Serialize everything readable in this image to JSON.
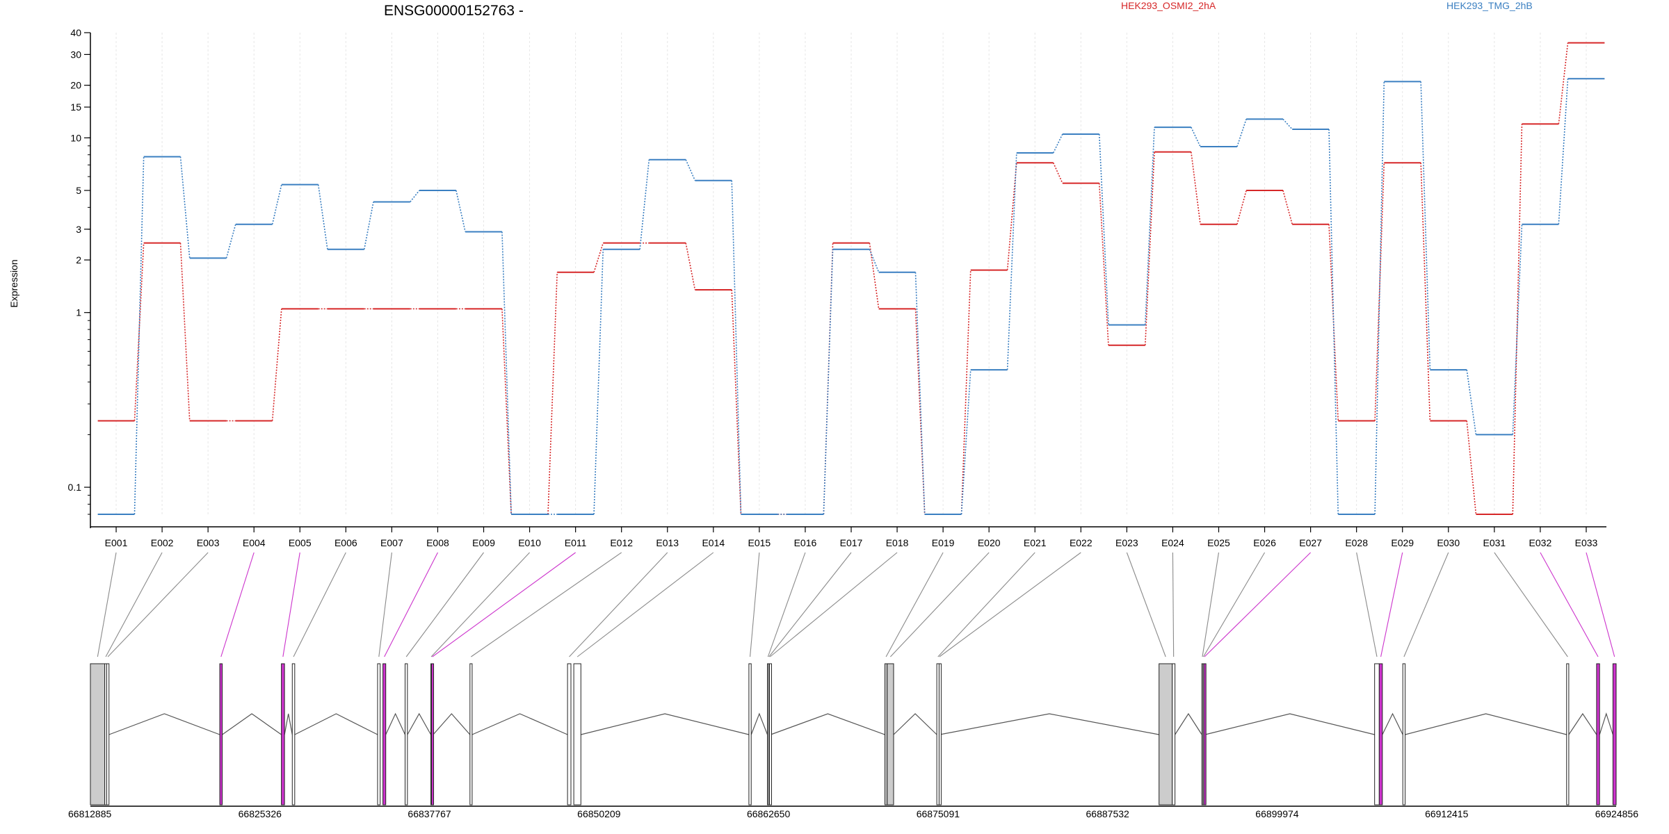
{
  "chart_data": {
    "type": "line",
    "title": "ENSG00000152763 -",
    "ylabel": "Expression",
    "y_scale": "log",
    "ylim": [
      0.07,
      40
    ],
    "y_ticks": [
      0.1,
      1,
      2,
      3,
      5,
      10,
      15,
      20,
      30,
      40
    ],
    "grid": "vertical dotted at exon centers",
    "legend_placement": "top, right half",
    "categories": [
      "E001",
      "E002",
      "E003",
      "E004",
      "E005",
      "E006",
      "E007",
      "E008",
      "E009",
      "E010",
      "E011",
      "E012",
      "E013",
      "E014",
      "E015",
      "E016",
      "E017",
      "E018",
      "E019",
      "E020",
      "E021",
      "E022",
      "E023",
      "E024",
      "E025",
      "E026",
      "E027",
      "E028",
      "E029",
      "E030",
      "E031",
      "E032",
      "E033"
    ],
    "series": [
      {
        "name": "HEK293_OSMI2_2hA",
        "color": "#d62728",
        "values": [
          0.24,
          2.5,
          0.24,
          0.24,
          1.05,
          1.05,
          1.05,
          1.05,
          1.05,
          0.07,
          1.7,
          2.5,
          2.5,
          1.35,
          0.07,
          0.07,
          2.5,
          1.05,
          0.07,
          1.75,
          7.2,
          5.5,
          0.65,
          8.3,
          3.2,
          5.0,
          3.2,
          0.24,
          7.2,
          0.24,
          0.07,
          12.0,
          35.0
        ]
      },
      {
        "name": "HEK293_TMG_2hB",
        "color": "#3a7fc1",
        "values": [
          0.07,
          7.8,
          2.05,
          3.2,
          5.4,
          2.3,
          4.3,
          5.0,
          2.9,
          0.07,
          0.07,
          2.3,
          7.5,
          5.7,
          0.07,
          0.07,
          2.3,
          1.7,
          0.07,
          0.47,
          8.2,
          10.5,
          0.85,
          11.5,
          8.9,
          12.8,
          11.2,
          0.07,
          21.0,
          0.47,
          0.2,
          3.2,
          21.8
        ]
      }
    ],
    "gene_model": {
      "coordinate_labels": [
        "66812885",
        "66825326",
        "66837767",
        "66850209",
        "66862650",
        "66875091",
        "66887532",
        "66899974",
        "66912415",
        "66924856"
      ],
      "coord_range": [
        66812885,
        66924856
      ],
      "highlight_color": "#cc33cc",
      "exons": [
        {
          "id": "E001",
          "start": 66812885,
          "end": 66813940,
          "fill": "#cccccc",
          "highlight": false
        },
        {
          "id": "E002",
          "start": 66813940,
          "end": 66814080,
          "fill": "#ffffff",
          "highlight": false
        },
        {
          "id": "E003",
          "start": 66814080,
          "end": 66814250,
          "fill": "#ffffff",
          "highlight": false
        },
        {
          "id": "E004",
          "start": 66822380,
          "end": 66822560,
          "fill": "#cc33cc",
          "highlight": true
        },
        {
          "id": "E005",
          "start": 66826900,
          "end": 66827130,
          "fill": "#cc33cc",
          "highlight": true
        },
        {
          "id": "E006",
          "start": 66827700,
          "end": 66827880,
          "fill": "#ffffff",
          "highlight": false
        },
        {
          "id": "E007",
          "start": 66833960,
          "end": 66834150,
          "fill": "#ffffff",
          "highlight": false
        },
        {
          "id": "E008",
          "start": 66834350,
          "end": 66834560,
          "fill": "#cc33cc",
          "highlight": true
        },
        {
          "id": "E009",
          "start": 66835980,
          "end": 66836150,
          "fill": "#ffffff",
          "highlight": false
        },
        {
          "id": "E010",
          "start": 66837870,
          "end": 66837920,
          "fill": "#ffffff",
          "highlight": false
        },
        {
          "id": "E011",
          "start": 66837920,
          "end": 66838040,
          "fill": "#cc33cc",
          "highlight": true
        },
        {
          "id": "E012",
          "start": 66840740,
          "end": 66840900,
          "fill": "#ffffff",
          "highlight": false
        },
        {
          "id": "E013",
          "start": 66847900,
          "end": 66848150,
          "fill": "#ffffff",
          "highlight": false
        },
        {
          "id": "E014",
          "start": 66848360,
          "end": 66848880,
          "fill": "#ffffff",
          "highlight": false
        },
        {
          "id": "E015",
          "start": 66861210,
          "end": 66861380,
          "fill": "#ffffff",
          "highlight": false
        },
        {
          "id": "E016",
          "start": 66862570,
          "end": 66862650,
          "fill": "#ffffff",
          "highlight": false
        },
        {
          "id": "E017",
          "start": 66862650,
          "end": 66862720,
          "fill": "#ffffff",
          "highlight": false
        },
        {
          "id": "E018",
          "start": 66862720,
          "end": 66862810,
          "fill": "#ffffff",
          "highlight": false
        },
        {
          "id": "E019",
          "start": 66871190,
          "end": 66871360,
          "fill": "#cccccc",
          "highlight": false
        },
        {
          "id": "E020",
          "start": 66871360,
          "end": 66871830,
          "fill": "#cccccc",
          "highlight": false
        },
        {
          "id": "E021",
          "start": 66875000,
          "end": 66875170,
          "fill": "#ffffff",
          "highlight": false
        },
        {
          "id": "E022",
          "start": 66875170,
          "end": 66875210,
          "fill": "#ffffff",
          "highlight": false
        },
        {
          "id": "E023",
          "start": 66891310,
          "end": 66892280,
          "fill": "#cccccc",
          "highlight": false
        },
        {
          "id": "E024",
          "start": 66892280,
          "end": 66892480,
          "fill": "#ffffff",
          "highlight": false
        },
        {
          "id": "E025",
          "start": 66894450,
          "end": 66894530,
          "fill": "#ffffff",
          "highlight": false
        },
        {
          "id": "E026",
          "start": 66894530,
          "end": 66894600,
          "fill": "#ffffff",
          "highlight": false
        },
        {
          "id": "E027",
          "start": 66894600,
          "end": 66894690,
          "fill": "#cc33cc",
          "highlight": true
        },
        {
          "id": "E028",
          "start": 66907130,
          "end": 66907470,
          "fill": "#ffffff",
          "highlight": false
        },
        {
          "id": "E029",
          "start": 66907470,
          "end": 66907700,
          "fill": "#cc33cc",
          "highlight": true
        },
        {
          "id": "E030",
          "start": 66909200,
          "end": 66909370,
          "fill": "#ffffff",
          "highlight": false
        },
        {
          "id": "E031",
          "start": 66921220,
          "end": 66921380,
          "fill": "#ffffff",
          "highlight": false
        },
        {
          "id": "E032",
          "start": 66923420,
          "end": 66923640,
          "fill": "#cc33cc",
          "highlight": true
        },
        {
          "id": "E033",
          "start": 66924620,
          "end": 66924856,
          "fill": "#cc33cc",
          "highlight": true
        }
      ]
    }
  }
}
